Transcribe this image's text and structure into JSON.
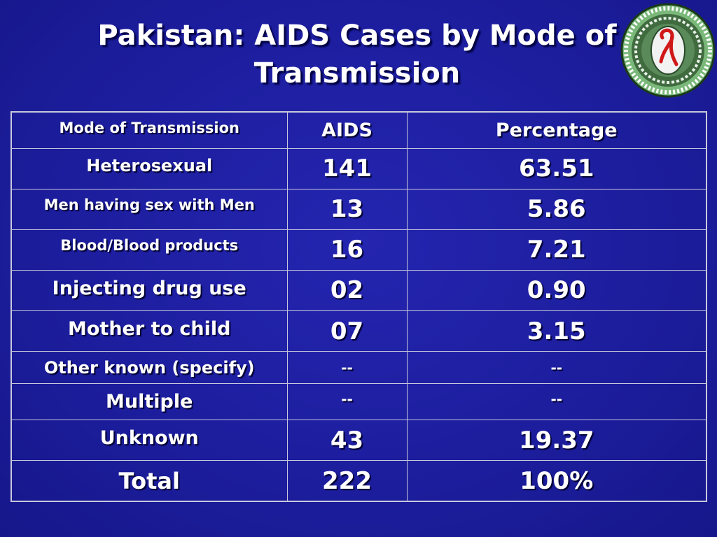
{
  "slide": {
    "title_line1": "Pakistan: AIDS Cases by Mode of",
    "title_line2": "Transmission",
    "logo_icon": "red-ribbon-seal-icon"
  },
  "table": {
    "headers": [
      "Mode of Transmission",
      "AIDS",
      "Percentage"
    ],
    "rows": [
      {
        "mode": "Heterosexual",
        "aids": "141",
        "percentage": "63.51"
      },
      {
        "mode": "Men having sex with Men",
        "aids": "13",
        "percentage": "5.86"
      },
      {
        "mode": "Blood/Blood products",
        "aids": "16",
        "percentage": "7.21"
      },
      {
        "mode": "Injecting drug use",
        "aids": "02",
        "percentage": "0.90"
      },
      {
        "mode": "Mother to child",
        "aids": "07",
        "percentage": "3.15"
      },
      {
        "mode": "Other known (specify)",
        "aids": "--",
        "percentage": "--"
      },
      {
        "mode": "Multiple",
        "aids": "--",
        "percentage": "--"
      },
      {
        "mode": "Unknown",
        "aids": "43",
        "percentage": "19.37"
      },
      {
        "mode": "Total",
        "aids": "222",
        "percentage": "100%"
      }
    ]
  },
  "colors": {
    "background": "#1d1ea0",
    "text": "#ffffff",
    "grid": "#c8c8dc"
  }
}
